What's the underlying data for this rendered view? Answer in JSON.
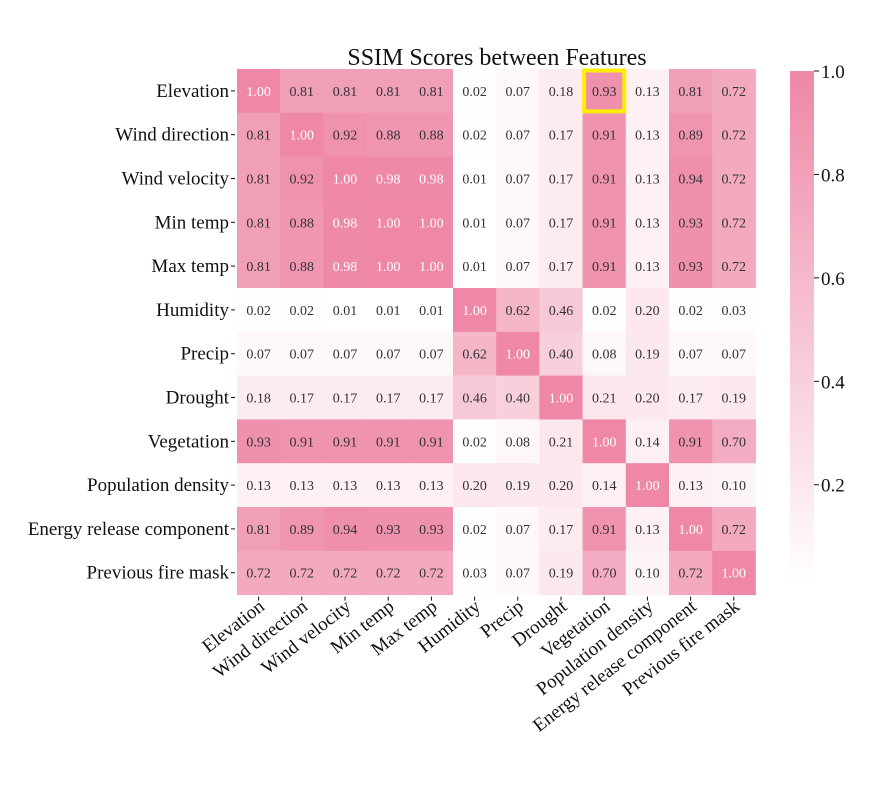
{
  "chart_data": {
    "type": "heatmap",
    "title": "SSIM Scores between Features",
    "rows": [
      "Elevation",
      "Wind direction",
      "Wind velocity",
      "Min temp",
      "Max temp",
      "Humidity",
      "Precip",
      "Drought",
      "Vegetation",
      "Population density",
      "Energy release component",
      "Previous fire mask"
    ],
    "columns": [
      "Elevation",
      "Wind direction",
      "Wind velocity",
      "Min temp",
      "Max temp",
      "Humidity",
      "Precip",
      "Drought",
      "Vegetation",
      "Population density",
      "Energy release component",
      "Previous fire mask"
    ],
    "values": [
      [
        1.0,
        0.81,
        0.81,
        0.81,
        0.81,
        0.02,
        0.07,
        0.18,
        0.93,
        0.13,
        0.81,
        0.72
      ],
      [
        0.81,
        1.0,
        0.92,
        0.88,
        0.88,
        0.02,
        0.07,
        0.17,
        0.91,
        0.13,
        0.89,
        0.72
      ],
      [
        0.81,
        0.92,
        1.0,
        0.98,
        0.98,
        0.01,
        0.07,
        0.17,
        0.91,
        0.13,
        0.94,
        0.72
      ],
      [
        0.81,
        0.88,
        0.98,
        1.0,
        1.0,
        0.01,
        0.07,
        0.17,
        0.91,
        0.13,
        0.93,
        0.72
      ],
      [
        0.81,
        0.88,
        0.98,
        1.0,
        1.0,
        0.01,
        0.07,
        0.17,
        0.91,
        0.13,
        0.93,
        0.72
      ],
      [
        0.02,
        0.02,
        0.01,
        0.01,
        0.01,
        1.0,
        0.62,
        0.46,
        0.02,
        0.2,
        0.02,
        0.03
      ],
      [
        0.07,
        0.07,
        0.07,
        0.07,
        0.07,
        0.62,
        1.0,
        0.4,
        0.08,
        0.19,
        0.07,
        0.07
      ],
      [
        0.18,
        0.17,
        0.17,
        0.17,
        0.17,
        0.46,
        0.4,
        1.0,
        0.21,
        0.2,
        0.17,
        0.19
      ],
      [
        0.93,
        0.91,
        0.91,
        0.91,
        0.91,
        0.02,
        0.08,
        0.21,
        1.0,
        0.14,
        0.91,
        0.7
      ],
      [
        0.13,
        0.13,
        0.13,
        0.13,
        0.13,
        0.2,
        0.19,
        0.2,
        0.14,
        1.0,
        0.13,
        0.1
      ],
      [
        0.81,
        0.89,
        0.94,
        0.93,
        0.93,
        0.02,
        0.07,
        0.17,
        0.91,
        0.13,
        1.0,
        0.72
      ],
      [
        0.72,
        0.72,
        0.72,
        0.72,
        0.72,
        0.03,
        0.07,
        0.19,
        0.7,
        0.1,
        0.72,
        1.0
      ]
    ],
    "colorbar": {
      "ticks": [
        "1.0",
        "0.8",
        "0.6",
        "0.4",
        "0.2"
      ],
      "tick_values": [
        1.0,
        0.8,
        0.6,
        0.4,
        0.2
      ],
      "range": [
        0.01,
        1.0
      ],
      "color_low": "#ffffff",
      "color_high": "#ee88a6"
    },
    "highlight": {
      "row": 0,
      "col": 8,
      "color": "#ffee00"
    },
    "colors": {
      "text_dark": "#333333",
      "text_light": "#ffffff",
      "axis_text": "#111111"
    },
    "legend": "colorbar-right",
    "grid": false
  }
}
